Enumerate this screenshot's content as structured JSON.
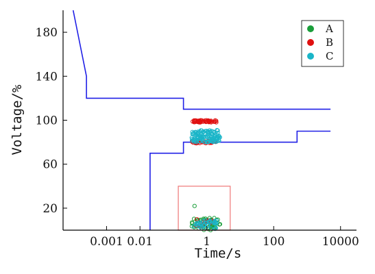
{
  "chart_data": {
    "type": "scatter",
    "xlabel": "Time/s",
    "ylabel": "Voltage/%",
    "xscale": "log",
    "xlim": [
      5e-05,
      30000
    ],
    "ylim": [
      0,
      200
    ],
    "xticks": [
      {
        "value": 0.001,
        "label": "0.001"
      },
      {
        "value": 0.01,
        "label": "0.01"
      },
      {
        "value": 1,
        "label": "1"
      },
      {
        "value": 100,
        "label": "100"
      },
      {
        "value": 10000,
        "label": "10000"
      }
    ],
    "yticks": [
      {
        "value": 20,
        "label": "20"
      },
      {
        "value": 60,
        "label": "60"
      },
      {
        "value": 100,
        "label": "100"
      },
      {
        "value": 140,
        "label": "140"
      },
      {
        "value": 180,
        "label": "180"
      }
    ],
    "legend_position": "top-right",
    "grid": false,
    "boundary_color": "#1f1fe6",
    "boundaries": [
      {
        "points": [
          [
            0.0001,
            200
          ],
          [
            0.00025,
            140
          ],
          [
            0.00025,
            120
          ],
          [
            0.2,
            120
          ],
          [
            0.2,
            110
          ],
          [
            5000,
            110
          ]
        ]
      },
      {
        "points": [
          [
            0.02,
            0
          ],
          [
            0.02,
            70
          ],
          [
            0.2,
            70
          ],
          [
            0.2,
            80
          ],
          [
            500,
            80
          ],
          [
            500,
            90
          ],
          [
            5000,
            90
          ]
        ]
      }
    ],
    "highlight_box": {
      "x0": 0.14,
      "x1": 5,
      "y0": 0,
      "y1": 40,
      "color": "#f08080"
    },
    "series": [
      {
        "name": "A",
        "color": "#1a9e3a",
        "clusters": [
          {
            "x": [
              0.35,
              2.5
            ],
            "y": [
              0,
              11
            ],
            "n": 60
          },
          {
            "x": [
              0.4,
              0.45
            ],
            "y": [
              22,
              22
            ],
            "n": 1
          }
        ]
      },
      {
        "name": "B",
        "color": "#e01010",
        "clusters": [
          {
            "x": [
              0.35,
              2.0
            ],
            "y": [
              98,
              100
            ],
            "n": 50
          },
          {
            "x": [
              0.35,
              2.0
            ],
            "y": [
              79,
              81
            ],
            "n": 40
          },
          {
            "x": [
              0.45,
              1.5
            ],
            "y": [
              3,
              10
            ],
            "n": 12
          }
        ]
      },
      {
        "name": "C",
        "color": "#1ab5c8",
        "clusters": [
          {
            "x": [
              0.35,
              2.5
            ],
            "y": [
              80,
              91
            ],
            "n": 120
          },
          {
            "x": [
              0.4,
              2.0
            ],
            "y": [
              1,
              9
            ],
            "n": 40
          }
        ]
      }
    ]
  }
}
